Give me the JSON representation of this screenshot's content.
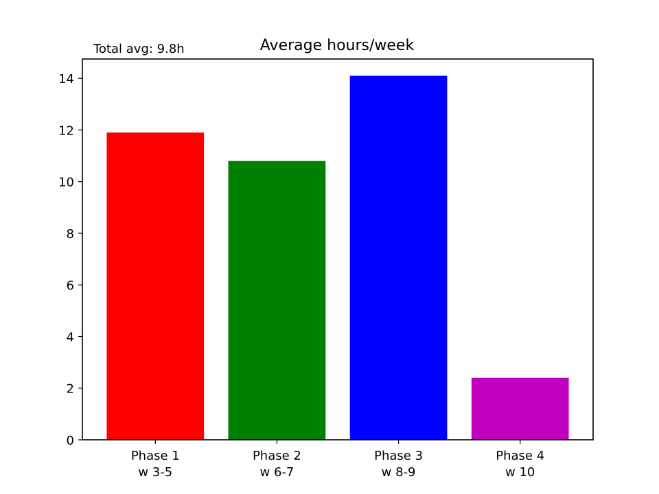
{
  "chart_data": {
    "type": "bar",
    "title": "Average hours/week",
    "annotation": "Total avg: 9.8h",
    "xlabel": "",
    "ylabel": "",
    "categories": [
      [
        "Phase 1",
        "w 3-5"
      ],
      [
        "Phase 2",
        "w 6-7"
      ],
      [
        "Phase 3",
        "w 8-9"
      ],
      [
        "Phase 4",
        "w 10"
      ]
    ],
    "values": [
      11.9,
      10.8,
      14.1,
      2.4
    ],
    "colors": [
      "#ff0000",
      "#008000",
      "#0000ff",
      "#bf00bf"
    ],
    "ylim": [
      0,
      14.75
    ],
    "yticks": [
      0,
      2,
      4,
      6,
      8,
      10,
      12,
      14
    ],
    "grid": false,
    "legend": "none"
  }
}
